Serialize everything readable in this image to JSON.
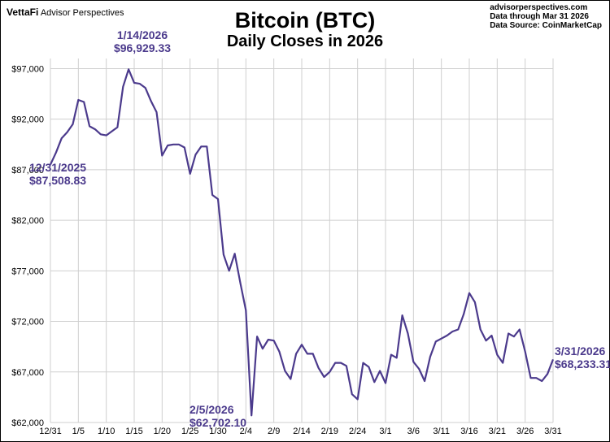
{
  "header": {
    "brand": "VettaFi",
    "brand_sub": "Advisor Perspectives",
    "site": "advisorperspectives.com",
    "data_through": "Data through Mar 31 2026",
    "data_source": "Data Source: CoinMarketCap"
  },
  "colors": {
    "line": "#4b3a8c",
    "annotation": "#4b3a8c",
    "grid": "#cfcfcf"
  },
  "chart_data": {
    "type": "line",
    "title": "Bitcoin (BTC)",
    "subtitle": "Daily Closes in 2026",
    "ylim": [
      62000,
      98000
    ],
    "yticks": [
      62000,
      67000,
      72000,
      77000,
      82000,
      87000,
      92000,
      97000
    ],
    "ytick_labels": [
      "$62,000",
      "$67,000",
      "$72,000",
      "$77,000",
      "$82,000",
      "$87,000",
      "$92,000",
      "$97,000"
    ],
    "xtick_labels": [
      "12/31",
      "1/5",
      "1/10",
      "1/15",
      "1/20",
      "1/25",
      "1/30",
      "2/4",
      "2/9",
      "2/14",
      "2/19",
      "2/24",
      "3/1",
      "3/6",
      "3/11",
      "3/16",
      "3/21",
      "3/26",
      "3/31"
    ],
    "grid": true,
    "series": [
      {
        "values": [
          87508.83,
          88700,
          90100,
          90700,
          91500,
          93900,
          93700,
          91300,
          91000,
          90500,
          90400,
          90800,
          91200,
          95200,
          96929.33,
          95600,
          95500,
          95100,
          93800,
          92700,
          88400,
          89400,
          89500,
          89500,
          89200,
          86600,
          88500,
          89300,
          89300,
          84500,
          84100,
          78600,
          77000,
          78700,
          75800,
          73100,
          62702.1,
          70500,
          69300,
          70200,
          70100,
          69000,
          67100,
          66300,
          68800,
          69700,
          68800,
          68800,
          67400,
          66500,
          67000,
          67900,
          67900,
          67600,
          64800,
          64300,
          67900,
          67500,
          66000,
          67100,
          65900,
          68700,
          68400,
          72600,
          70800,
          68000,
          67300,
          66100,
          68500,
          70000,
          70300,
          70600,
          71000,
          71200,
          72700,
          74800,
          73900,
          71200,
          70100,
          70600,
          68700,
          67900,
          70800,
          70500,
          71200,
          69000,
          66400,
          66400,
          66100,
          66800,
          68233.31
        ]
      }
    ],
    "annotations": [
      {
        "date": "1/14/2026",
        "value": "$96,929.33"
      },
      {
        "date": "12/31/2025",
        "value": "$87,508.83"
      },
      {
        "date": "2/5/2026",
        "value": "$62,702.10"
      },
      {
        "date": "3/31/2026",
        "value": "$68,233.31"
      }
    ]
  }
}
